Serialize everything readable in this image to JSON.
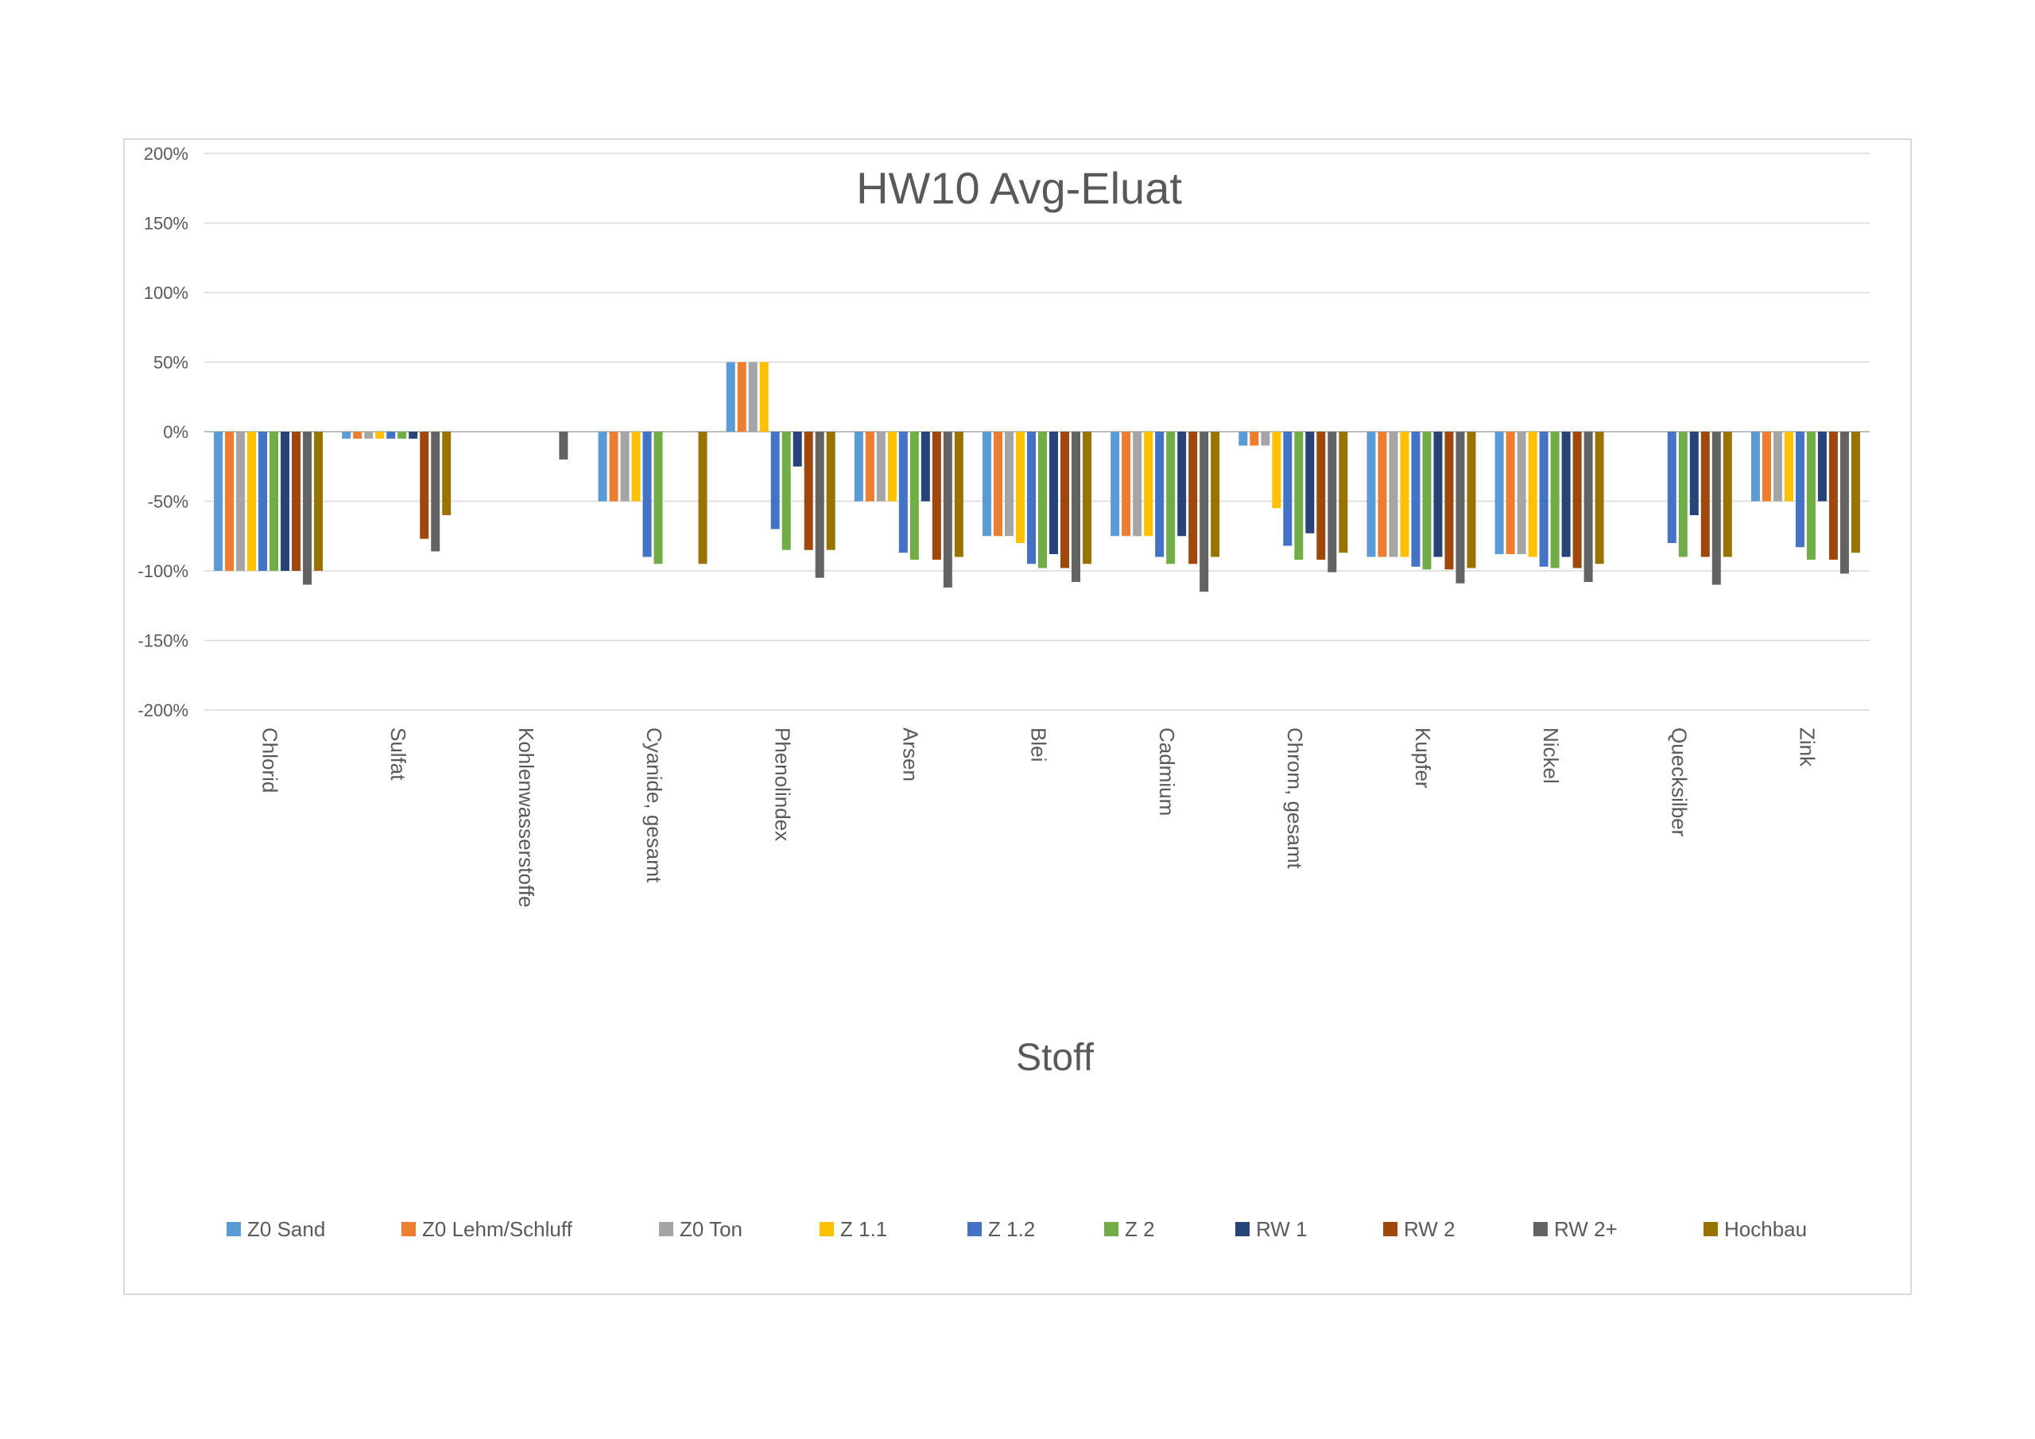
{
  "chart_data": {
    "type": "bar",
    "title": "HW10 Avg-Eluat",
    "xlabel": "Stoff",
    "ylabel": "",
    "ylim": [
      -2.0,
      2.0
    ],
    "yticks": [
      2.0,
      1.5,
      1.0,
      0.5,
      0.0,
      -0.5,
      -1.0,
      -1.5,
      -2.0
    ],
    "ytick_labels": [
      "200%",
      "150%",
      "100%",
      "50%",
      "0%",
      "-50%",
      "-100%",
      "-150%",
      "-200%"
    ],
    "value_format": "percent",
    "grid": "horizontal",
    "legend_position": "bottom",
    "categories": [
      "Chlorid",
      "Sulfat",
      "Kohlenwasserstoffe",
      "Cyanide, gesamt",
      "Phenolindex",
      "Arsen",
      "Blei",
      "Cadmium",
      "Chrom, gesamt",
      "Kupfer",
      "Nickel",
      "Quecksilber",
      "Zink"
    ],
    "series": [
      {
        "name": "Z0 Sand",
        "color": "#5b9bd5",
        "values": [
          -1.0,
          -0.05,
          null,
          -0.5,
          0.5,
          -0.5,
          -0.75,
          -0.75,
          -0.1,
          -0.9,
          -0.88,
          null,
          -0.5
        ]
      },
      {
        "name": "Z0 Lehm/Schluff",
        "color": "#ed7d31",
        "values": [
          -1.0,
          -0.05,
          null,
          -0.5,
          0.5,
          -0.5,
          -0.75,
          -0.75,
          -0.1,
          -0.9,
          -0.88,
          null,
          -0.5
        ]
      },
      {
        "name": "Z0 Ton",
        "color": "#a5a5a5",
        "values": [
          -1.0,
          -0.05,
          null,
          -0.5,
          0.5,
          -0.5,
          -0.75,
          -0.75,
          -0.1,
          -0.9,
          -0.88,
          null,
          -0.5
        ]
      },
      {
        "name": "Z 1.1",
        "color": "#ffc000",
        "values": [
          -1.0,
          -0.05,
          null,
          -0.5,
          0.5,
          -0.5,
          -0.8,
          -0.75,
          -0.55,
          -0.9,
          -0.9,
          null,
          -0.5
        ]
      },
      {
        "name": "Z 1.2",
        "color": "#4472c4",
        "values": [
          -1.0,
          -0.05,
          null,
          -0.9,
          -0.7,
          -0.87,
          -0.95,
          -0.9,
          -0.82,
          -0.97,
          -0.97,
          -0.8,
          -0.83
        ]
      },
      {
        "name": "Z 2",
        "color": "#70ad47",
        "values": [
          -1.0,
          -0.05,
          null,
          -0.95,
          -0.85,
          -0.92,
          -0.98,
          -0.95,
          -0.92,
          -0.99,
          -0.98,
          -0.9,
          -0.92
        ]
      },
      {
        "name": "RW 1",
        "color": "#264478",
        "values": [
          -1.0,
          -0.05,
          null,
          null,
          -0.25,
          -0.5,
          -0.88,
          -0.75,
          -0.73,
          -0.9,
          -0.9,
          -0.6,
          -0.5
        ]
      },
      {
        "name": "RW 2",
        "color": "#9e480e",
        "values": [
          -1.0,
          -0.77,
          null,
          null,
          -0.85,
          -0.92,
          -0.98,
          -0.95,
          -0.92,
          -0.99,
          -0.98,
          -0.9,
          -0.92
        ]
      },
      {
        "name": "RW 2+",
        "color": "#636363",
        "values": [
          -1.1,
          -0.86,
          -0.2,
          null,
          -1.05,
          -1.12,
          -1.08,
          -1.15,
          -1.01,
          -1.09,
          -1.08,
          -1.1,
          -1.02
        ]
      },
      {
        "name": "Hochbau",
        "color": "#997300",
        "values": [
          -1.0,
          -0.6,
          null,
          -0.95,
          -0.85,
          -0.9,
          -0.95,
          -0.9,
          -0.87,
          -0.98,
          -0.95,
          -0.9,
          -0.87
        ]
      }
    ]
  }
}
